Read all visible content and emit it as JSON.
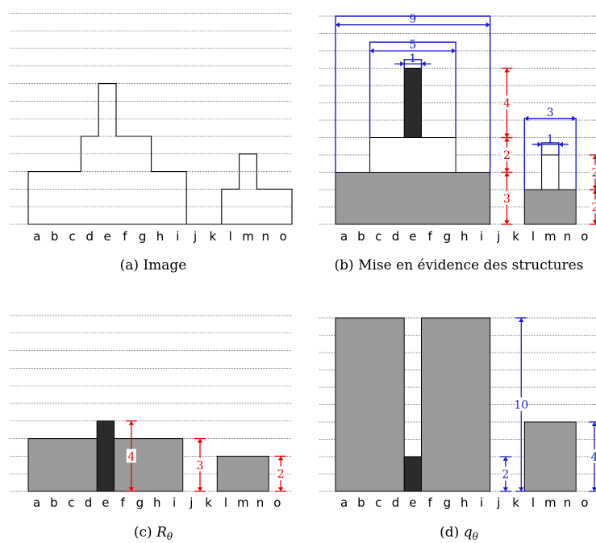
{
  "axis_letters": [
    "a",
    "b",
    "c",
    "d",
    "e",
    "f",
    "g",
    "h",
    "i",
    "j",
    "k",
    "l",
    "m",
    "n",
    "o"
  ],
  "colors": {
    "grid": "#555555",
    "outline": "#000000",
    "fill_gray": "#9a9a9a",
    "fill_dark": "#2b2b2b",
    "dim_red": "#e60000",
    "dim_blue": "#1a1acc"
  },
  "panels": [
    {
      "id": "a",
      "caption_tag": "(a)",
      "caption_text": "Image",
      "profile": [
        3,
        3,
        3,
        5,
        8,
        5,
        5,
        3,
        3,
        0,
        0,
        2,
        4,
        2,
        2
      ]
    },
    {
      "id": "b",
      "caption_tag": "(b)",
      "caption_text": "Mise en évidence des structures",
      "blue_labels": [
        "9",
        "5",
        "1",
        "3",
        "1"
      ],
      "red_labels": [
        "4",
        "2",
        "3",
        "2",
        "2"
      ]
    },
    {
      "id": "c",
      "caption_tag": "(c)",
      "caption_symbol": "R",
      "caption_sub": "θ",
      "red_labels": [
        "4",
        "3",
        "2"
      ]
    },
    {
      "id": "d",
      "caption_tag": "(d)",
      "caption_symbol": "q",
      "caption_sub": "θ",
      "blue_labels": [
        "10",
        "2",
        "4"
      ]
    }
  ]
}
